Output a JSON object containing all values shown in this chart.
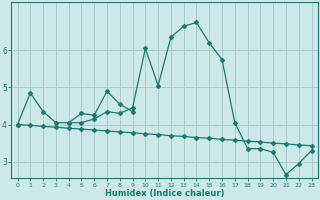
{
  "xlabel": "Humidex (Indice chaleur)",
  "background_color": "#cce8e8",
  "line_color": "#1a7a6e",
  "grid_color": "#aacccc",
  "xlim": [
    -0.5,
    23.5
  ],
  "ylim": [
    2.55,
    7.3
  ],
  "xticks": [
    0,
    1,
    2,
    3,
    4,
    5,
    6,
    7,
    8,
    9,
    10,
    11,
    12,
    13,
    14,
    15,
    16,
    17,
    18,
    19,
    20,
    21,
    22,
    23
  ],
  "yticks": [
    3,
    4,
    5,
    6
  ],
  "series1_x": [
    0,
    1,
    2,
    3,
    4,
    5,
    6,
    7,
    8,
    9,
    10,
    11,
    12,
    13,
    14,
    15,
    16,
    17,
    18,
    19,
    20,
    21,
    22,
    23
  ],
  "series1_y": [
    4.0,
    4.85,
    4.35,
    4.05,
    4.05,
    4.05,
    4.15,
    4.35,
    4.3,
    4.45,
    6.05,
    5.05,
    6.35,
    6.65,
    6.75,
    6.2,
    5.75,
    4.05,
    3.35,
    3.35,
    3.25,
    2.65,
    2.95,
    3.3
  ],
  "series2_x": [
    4,
    5,
    6,
    7,
    8,
    9
  ],
  "series2_y": [
    4.05,
    4.3,
    4.25,
    4.9,
    4.55,
    4.35
  ],
  "series3_x": [
    0,
    1,
    2,
    3,
    4,
    5,
    6,
    7,
    8,
    9,
    10,
    11,
    12,
    13,
    14,
    15,
    16,
    17,
    18,
    19,
    20,
    21,
    22,
    23
  ],
  "series3_y": [
    4.0,
    3.98,
    3.95,
    3.93,
    3.9,
    3.88,
    3.85,
    3.83,
    3.8,
    3.78,
    3.75,
    3.73,
    3.7,
    3.68,
    3.65,
    3.63,
    3.6,
    3.58,
    3.55,
    3.53,
    3.5,
    3.48,
    3.45,
    3.43
  ]
}
